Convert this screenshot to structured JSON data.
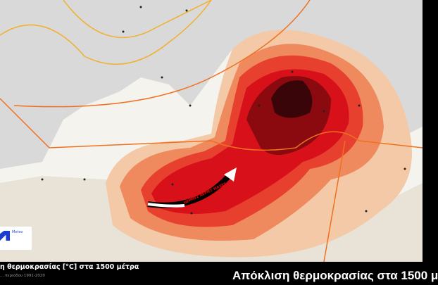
{
  "map": {
    "arrow_label": "ΘΕΡΜΕΣ ΑΕΡΙΕΣ ΜΑΖΕΣ",
    "colors": {
      "sea": "#f4f3ee",
      "land": "#dcdcdc",
      "anomaly_low": "#f3c9a8",
      "anomaly_mid": "#ef8a5e",
      "anomaly_high": "#d8101a",
      "anomaly_max": "#3a0508",
      "isotherm_yellow": "#f0b030",
      "isotherm_orange": "#f07020"
    }
  },
  "logo": {
    "name": "Meteo"
  },
  "footer": {
    "title_left": "η θερμοκρασίας [°C] στα 1500 μέτρα",
    "subtitle_left": "… περιόδου 1991-2020",
    "title_right": "Απόκλιση θερμοκρασίας στα 1500 μ"
  }
}
